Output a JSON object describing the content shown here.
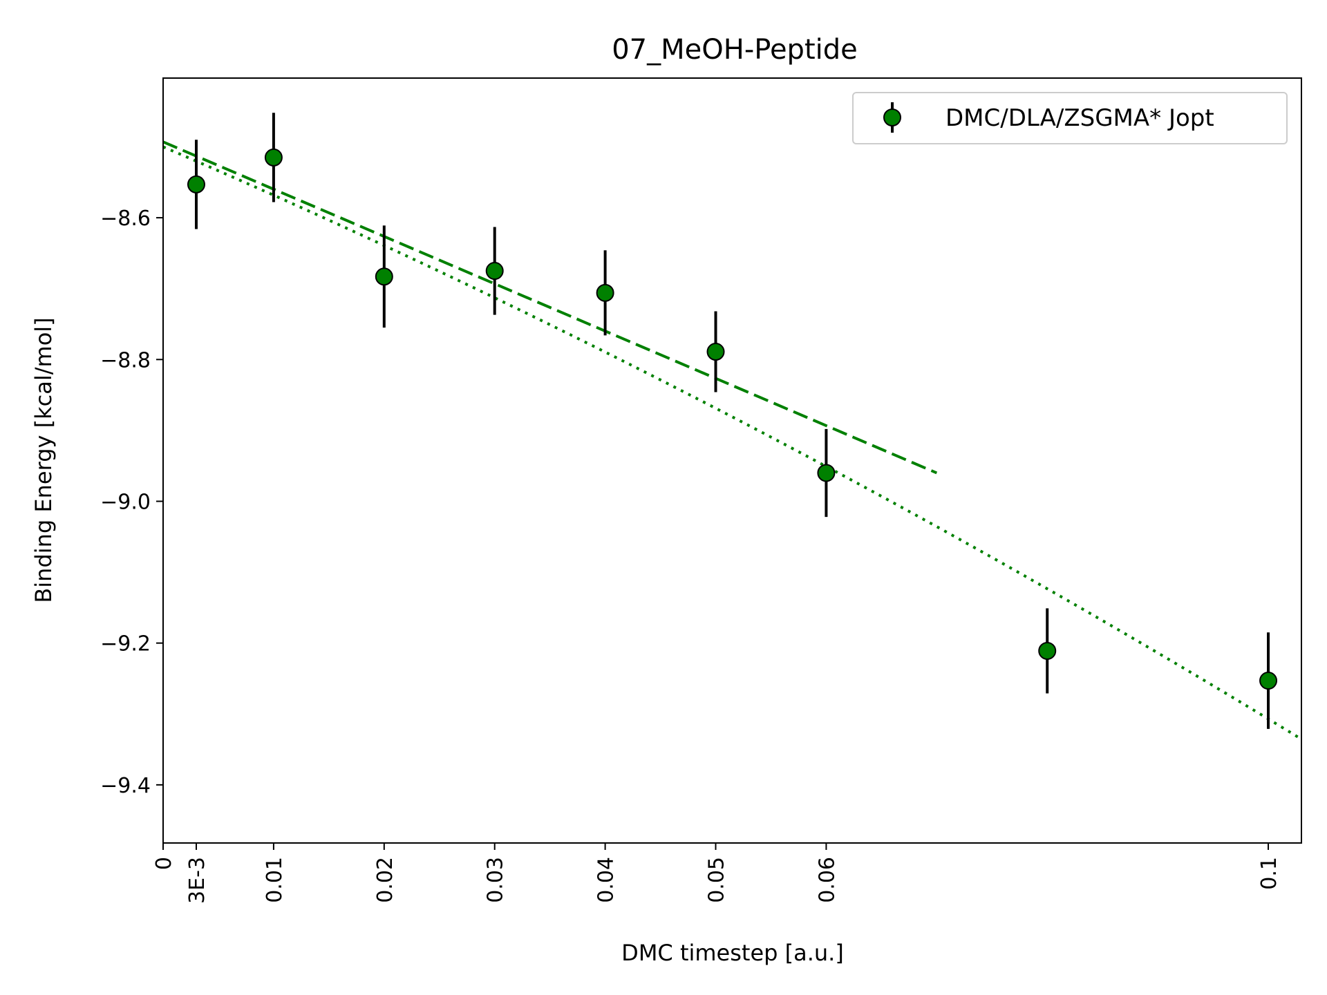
{
  "chart_data": {
    "type": "scatter",
    "title": "07_MeOH-Peptide",
    "xlabel": "DMC timestep [a.u.]",
    "ylabel": "Binding Energy [kcal/mol]",
    "xlim": [
      0,
      0.103
    ],
    "ylim": [
      -9.482,
      -8.403
    ],
    "x_ticks": [
      {
        "value": 0,
        "label": "0"
      },
      {
        "value": 0.003,
        "label": "3E-3"
      },
      {
        "value": 0.01,
        "label": "0.01"
      },
      {
        "value": 0.02,
        "label": "0.02"
      },
      {
        "value": 0.03,
        "label": "0.03"
      },
      {
        "value": 0.04,
        "label": "0.04"
      },
      {
        "value": 0.05,
        "label": "0.05"
      },
      {
        "value": 0.06,
        "label": "0.06"
      },
      {
        "value": 0.1,
        "label": "0.1"
      }
    ],
    "y_ticks": [
      {
        "value": -8.6,
        "label": "−8.6"
      },
      {
        "value": -8.8,
        "label": "−8.8"
      },
      {
        "value": -9.0,
        "label": "−9.0"
      },
      {
        "value": -9.2,
        "label": "−9.2"
      },
      {
        "value": -9.4,
        "label": "−9.4"
      }
    ],
    "series": [
      {
        "name": "DMC/DLA/ZSGMA* Jopt",
        "color": "#008000",
        "marker": "circle",
        "points": [
          {
            "x": 0.003,
            "y": -8.553,
            "err": 0.063
          },
          {
            "x": 0.01,
            "y": -8.515,
            "err": 0.063
          },
          {
            "x": 0.02,
            "y": -8.683,
            "err": 0.072
          },
          {
            "x": 0.03,
            "y": -8.675,
            "err": 0.062
          },
          {
            "x": 0.04,
            "y": -8.706,
            "err": 0.06
          },
          {
            "x": 0.05,
            "y": -8.789,
            "err": 0.057
          },
          {
            "x": 0.06,
            "y": -8.96,
            "err": 0.062
          },
          {
            "x": 0.08,
            "y": -9.211,
            "err": 0.06
          },
          {
            "x": 0.1,
            "y": -9.253,
            "err": 0.068
          }
        ]
      }
    ],
    "fits": [
      {
        "kind": "linear",
        "style": "dashed",
        "color": "#008000",
        "points": [
          {
            "x": 0,
            "y": -8.493
          },
          {
            "x": 0.07,
            "y": -8.96
          }
        ]
      },
      {
        "kind": "quadratic",
        "style": "dotted",
        "color": "#008000",
        "coef": [
          -8.5,
          -6.68,
          -13.9
        ],
        "x_range": [
          0,
          0.103
        ]
      }
    ],
    "legend_position": "top-right",
    "grid": false
  }
}
